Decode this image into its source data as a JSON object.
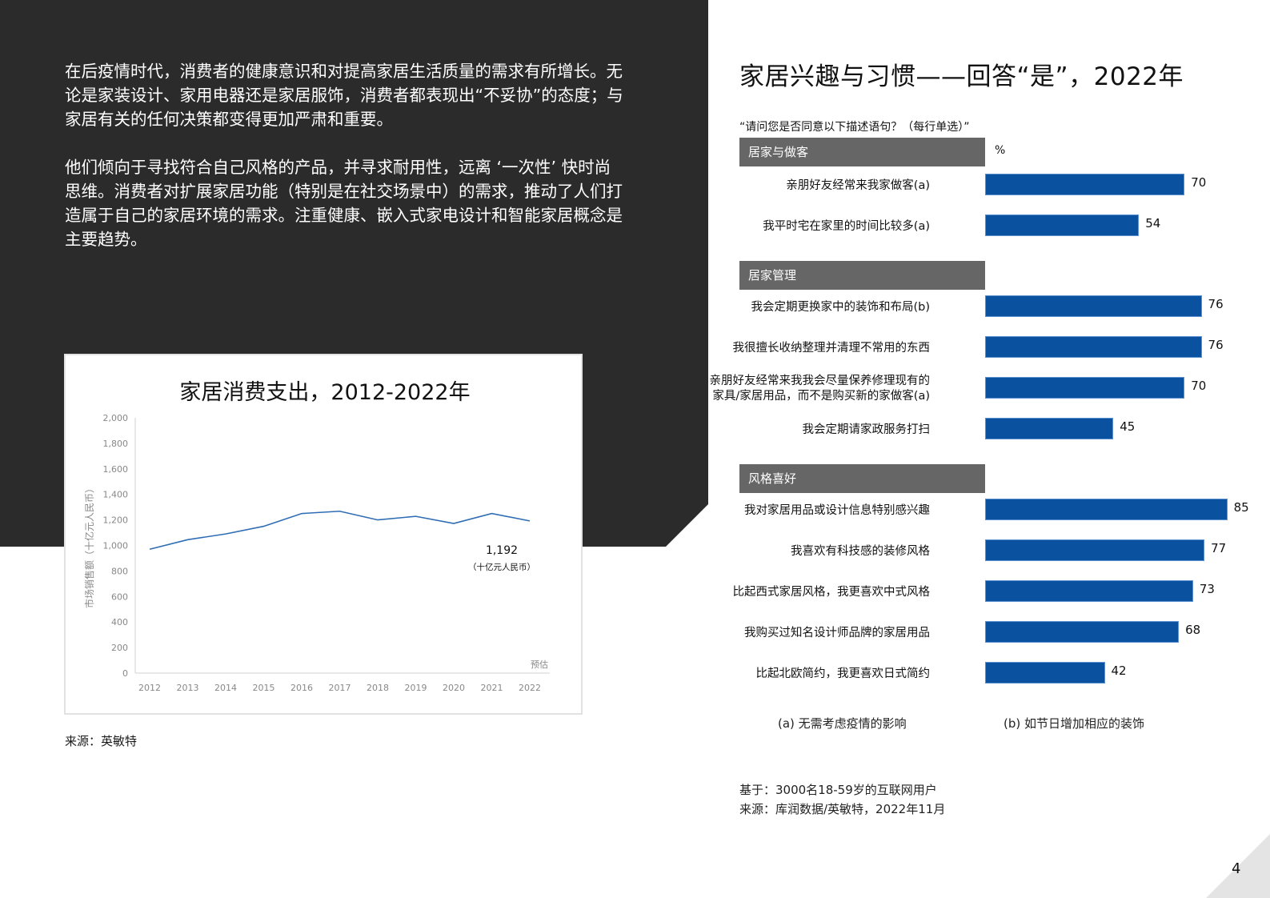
{
  "left": {
    "paragraphs": [
      "在后疫情时代，消费者的健康意识和对提高家居生活质量的需求有所增长。无论是家装设计、家用电器还是家居服饰，消费者都表现出“不妥协”的态度；与家居有关的任何决策都变得更加严肃和重要。",
      "他们倾向于寻找符合自己风格的产品，并寻求耐用性，远离 ‘一次性’ 快时尚思维。消费者对扩展家居功能（特别是在社交场景中）的需求，推动了人们打造属于自己的家居环境的需求。注重健康、嵌入式家电设计和智能家居概念是主要趋势。"
    ],
    "source": "来源：英敏特"
  },
  "right": {
    "title": "家居兴趣与习惯——回答“是”，2022年",
    "question": "“请问您是否同意以下描述语句？（每行单选）”",
    "unit": "%",
    "footnotes": {
      "a": "(a) 无需考虑疫情的影响",
      "b": "(b) 如节日增加相应的装饰"
    },
    "base": "基于：3000名18-59岁的互联网用户",
    "source": "来源：库润数据/英敏特，2022年11月"
  },
  "page_number": "4",
  "colors": {
    "dark_panel": "#2b2b2b",
    "bar": "#0a52a0",
    "line": "#2e6db4",
    "section_header": "#666666"
  },
  "chart_data": [
    {
      "type": "line",
      "title": "家居消费支出，2012-2022年",
      "xlabel": "",
      "ylabel": "市场销售额（十亿元人民币）",
      "categories": [
        "2012",
        "2013",
        "2014",
        "2015",
        "2016",
        "2017",
        "2018",
        "2019",
        "2020",
        "2021",
        "2022"
      ],
      "series": [
        {
          "name": "家居消费支出",
          "values": [
            970,
            1045,
            1090,
            1150,
            1250,
            1268,
            1200,
            1228,
            1172,
            1250,
            1192
          ]
        }
      ],
      "yticks": [
        "0",
        "200",
        "400",
        "600",
        "800",
        "1,000",
        "1,200",
        "1,400",
        "1,600",
        "1,800",
        "2,000"
      ],
      "ylim": [
        0,
        2000
      ],
      "grid": false,
      "annotations": [
        {
          "text": "1,192",
          "x": "2022"
        },
        {
          "text": "（十亿元人民币）",
          "x": "2022"
        },
        {
          "text": "预估",
          "x": "2022"
        }
      ]
    },
    {
      "type": "bar",
      "orientation": "horizontal",
      "title": "家居兴趣与习惯——回答“是”，2022年",
      "unit": "%",
      "groups": [
        {
          "name": "居家与做客",
          "categories": [
            "亲朋好友经常来我家做客(a)",
            "我平时宅在家里的时间比较多(a)"
          ],
          "values": [
            70,
            54
          ]
        },
        {
          "name": "居家管理",
          "categories": [
            "我会定期更换家中的装饰和布局(b)",
            "我很擅长收纳整理并清理不常用的东西",
            "亲朋好友经常来我我会尽量保养修理现有的家具/家居用品，而不是购买新的家做客(a)",
            "我会定期请家政服务打扫"
          ],
          "values": [
            76,
            76,
            70,
            45
          ]
        },
        {
          "name": "风格喜好",
          "categories": [
            "我对家居用品或设计信息特别感兴趣",
            "我喜欢有科技感的装修风格",
            "比起西式家居风格，我更喜欢中式风格",
            "我购买过知名设计师品牌的家居用品",
            "比起北欧简约，我更喜欢日式简约"
          ],
          "values": [
            85,
            77,
            73,
            68,
            42
          ]
        }
      ]
    }
  ],
  "labels": {
    "r0": "亲朋好友经常来我家做客(a)",
    "r1": "我平时宅在家里的时间比较多(a)",
    "r2": "我会定期更换家中的装饰和布局(b)",
    "r3": "我很擅长收纳整理并清理不常用的东西",
    "r4a": "亲朋好友经常来我我会尽量保养修理现有的",
    "r4b": "家具/家居用品，而不是购买新的家做客(a)",
    "r5": "我会定期请家政服务打扫",
    "r6": "我对家居用品或设计信息特别感兴趣",
    "r7": "我喜欢有科技感的装修风格",
    "r8": "比起西式家居风格，我更喜欢中式风格",
    "r9": "我购买过知名设计师品牌的家居用品",
    "r10": "比起北欧简约，我更喜欢日式简约"
  },
  "values": {
    "r0": "70",
    "r1": "54",
    "r2": "76",
    "r3": "76",
    "r4": "70",
    "r5": "45",
    "r6": "85",
    "r7": "77",
    "r8": "73",
    "r9": "68",
    "r10": "42"
  },
  "sections": {
    "s0": "居家与做客",
    "s1": "居家管理",
    "s2": "风格喜好"
  }
}
